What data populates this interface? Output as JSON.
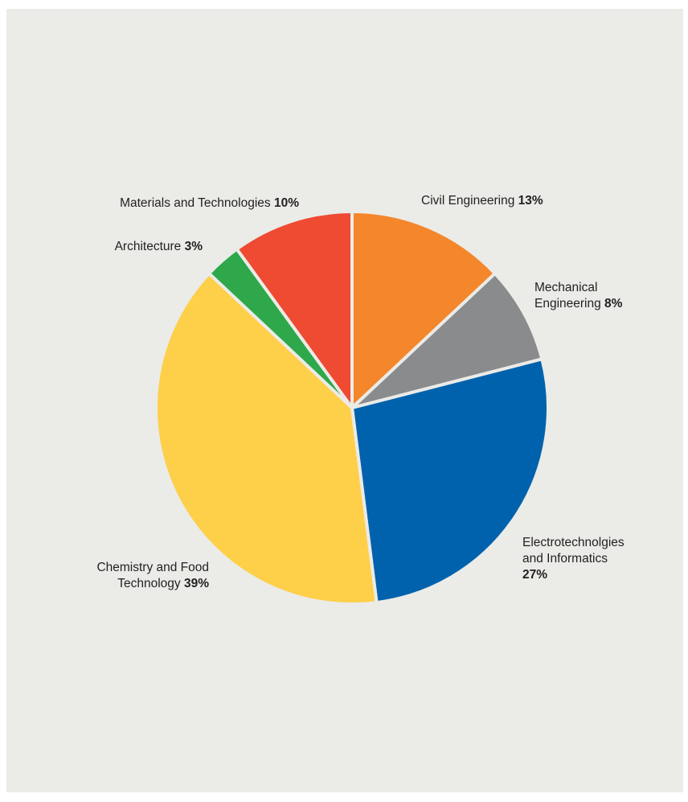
{
  "chart_data": {
    "type": "pie",
    "slices": [
      {
        "lines": [
          "Civil Engineering"
        ],
        "pct": "13%",
        "value": 13,
        "color": "#f4862b"
      },
      {
        "lines": [
          "Mechanical",
          "Engineering"
        ],
        "pct": "8%",
        "value": 8,
        "color": "#8a8b8d"
      },
      {
        "lines": [
          "Electrotechnolgies",
          "and Informatics"
        ],
        "pct": "27%",
        "value": 27,
        "color": "#0062ad"
      },
      {
        "lines": [
          "Chemistry and Food",
          "Technology"
        ],
        "pct": "39%",
        "value": 39,
        "color": "#fecf49"
      },
      {
        "lines": [
          "Architecture"
        ],
        "pct": "3%",
        "value": 3,
        "color": "#2ea84a"
      },
      {
        "lines": [
          "Materials and Technologies"
        ],
        "pct": "10%",
        "value": 10,
        "color": "#ef4a32"
      }
    ]
  }
}
